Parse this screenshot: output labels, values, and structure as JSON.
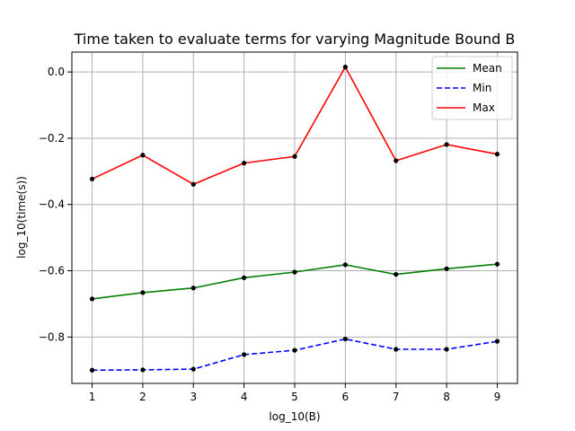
{
  "chart_data": {
    "type": "line",
    "title": "Time taken to evaluate terms for varying Magnitude Bound B",
    "xlabel": "log_10(B)",
    "ylabel": "log_10(time(s))",
    "x": [
      1,
      2,
      3,
      4,
      5,
      6,
      7,
      8,
      9
    ],
    "xlim": [
      0.6,
      9.4
    ],
    "ylim": [
      -0.94,
      0.06
    ],
    "xticks": [
      1,
      2,
      3,
      4,
      5,
      6,
      7,
      8,
      9
    ],
    "yticks": [
      0.0,
      -0.2,
      -0.4,
      -0.6,
      -0.8
    ],
    "ytick_labels": [
      "0.0",
      "−0.2",
      "−0.4",
      "−0.6",
      "−0.8"
    ],
    "grid": true,
    "legend_position": "top-right",
    "marker_color": "#000000",
    "series": [
      {
        "name": "Mean",
        "color": "#008000",
        "dash": "solid",
        "values": [
          -0.685,
          -0.666,
          -0.652,
          -0.621,
          -0.604,
          -0.582,
          -0.611,
          -0.594,
          -0.58
        ]
      },
      {
        "name": "Min",
        "color": "#0000ff",
        "dash": "dashed",
        "values": [
          -0.9,
          -0.899,
          -0.897,
          -0.853,
          -0.84,
          -0.806,
          -0.837,
          -0.837,
          -0.813
        ]
      },
      {
        "name": "Max",
        "color": "#ff0000",
        "dash": "solid",
        "values": [
          -0.323,
          -0.251,
          -0.339,
          -0.275,
          -0.255,
          0.015,
          -0.268,
          -0.219,
          -0.248
        ]
      }
    ]
  }
}
